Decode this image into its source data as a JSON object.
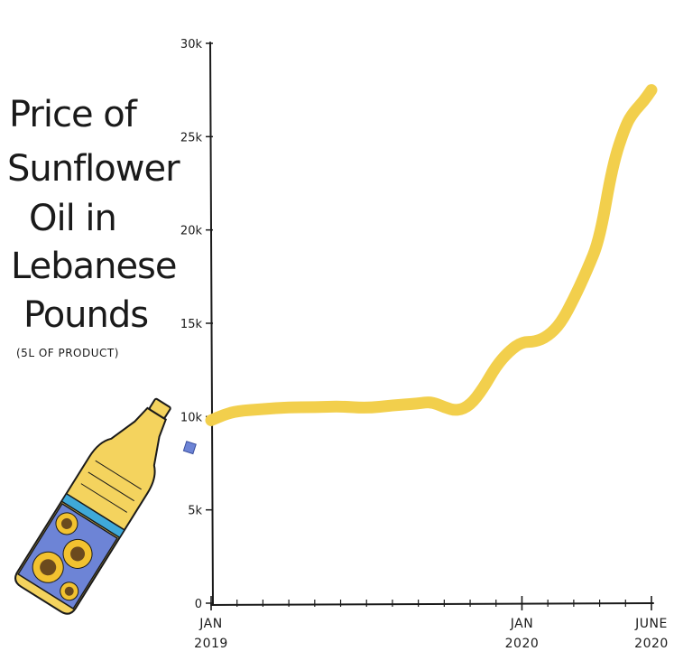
{
  "title_lines": [
    "Price of",
    "Sunflower",
    "Oil in",
    "Lebanese",
    "Pounds"
  ],
  "subtitle": "(5L OF PRODUCT)",
  "colors": {
    "line": "#f2cf4c",
    "axis": "#1a1a1a",
    "bottle_oil": "#f4d35e",
    "bottle_label": "#6d84d6",
    "bottle_band": "#3fa9d9",
    "drop": "#6d84d6",
    "sunflower_petal": "#f2c230",
    "sunflower_center": "#6b4a1e"
  },
  "icons": [
    "oil-bottle-icon",
    "oil-drop-icon",
    "sunflower-icon"
  ],
  "chart_data": {
    "type": "line",
    "title": "Price of Sunflower Oil in Lebanese Pounds",
    "subtitle": "(5L OF PRODUCT)",
    "xlabel": "",
    "ylabel": "",
    "ylim": [
      0,
      30000
    ],
    "xlim": [
      "2019-01",
      "2020-06"
    ],
    "y_ticks": [
      {
        "value": 0,
        "label": "0"
      },
      {
        "value": 5000,
        "label": "5k"
      },
      {
        "value": 10000,
        "label": "10k"
      },
      {
        "value": 15000,
        "label": "15k"
      },
      {
        "value": 20000,
        "label": "20k"
      },
      {
        "value": 25000,
        "label": "25k"
      },
      {
        "value": 30000,
        "label": "30k"
      }
    ],
    "x_ticks": [
      {
        "value": 0,
        "line1": "JAN",
        "line2": "2019"
      },
      {
        "value": 12,
        "line1": "JAN",
        "line2": "2020"
      },
      {
        "value": 17,
        "line1": "JUNE",
        "line2": "2020"
      }
    ],
    "x_minor_ticks": [
      1,
      2,
      3,
      4,
      5,
      6,
      7,
      8,
      9,
      10,
      11,
      13,
      14,
      15,
      16
    ],
    "grid": false,
    "legend": "none",
    "series": [
      {
        "x": [
          0,
          0.5,
          1,
          2,
          3,
          4,
          5,
          6,
          7,
          8,
          8.5,
          9,
          9.5,
          10,
          10.5,
          11,
          11.5,
          12,
          12.5,
          13,
          13.5,
          14,
          14.5,
          15,
          15.5,
          16,
          16.3,
          16.7,
          17
        ],
        "y": [
          9800,
          10100,
          10300,
          10400,
          10500,
          10500,
          10550,
          10450,
          10600,
          10700,
          10800,
          10500,
          10300,
          10600,
          11500,
          12700,
          13500,
          14000,
          14000,
          14300,
          15000,
          16300,
          17800,
          19500,
          23500,
          25600,
          26300,
          26900,
          27500
        ]
      }
    ]
  }
}
